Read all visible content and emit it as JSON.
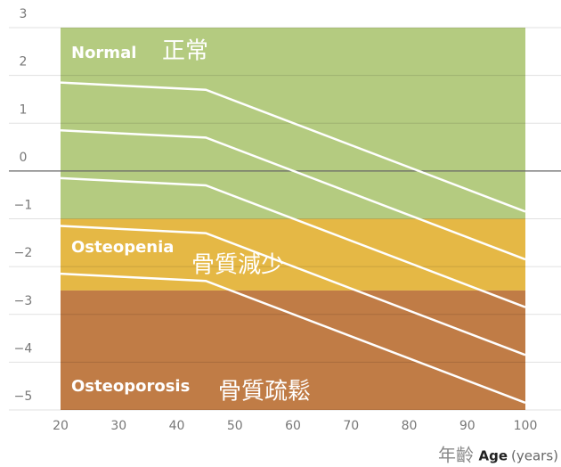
{
  "chart_data": {
    "type": "line",
    "x": [
      20,
      45,
      100
    ],
    "series": [
      {
        "color": "#ffffff",
        "values": [
          1.85,
          1.7,
          -0.85
        ]
      },
      {
        "color": "#ffffff",
        "values": [
          0.85,
          0.7,
          -1.85
        ]
      },
      {
        "color": "#ffffff",
        "values": [
          -0.15,
          -0.3,
          -2.85
        ]
      },
      {
        "color": "#ffffff",
        "values": [
          -1.15,
          -1.3,
          -3.85
        ]
      },
      {
        "color": "#ffffff",
        "values": [
          -2.15,
          -2.3,
          -4.85
        ]
      }
    ],
    "bands": [
      {
        "name": "Normal",
        "name_zh": "正常",
        "range": [
          -1,
          3
        ],
        "color": "#b4cb80"
      },
      {
        "name": "Osteopenia",
        "name_zh": "骨質減少",
        "range": [
          -2.5,
          -1
        ],
        "color": "#e5b845"
      },
      {
        "name": "Osteoporosis",
        "name_zh": "骨質疏鬆",
        "range": [
          -5,
          -2.5
        ],
        "color": "#c07c46"
      }
    ],
    "xlim": [
      20,
      100
    ],
    "xticks": [
      20,
      30,
      40,
      50,
      60,
      70,
      80,
      90,
      100
    ],
    "ylim": [
      -5,
      3
    ],
    "yticks": [
      3,
      2,
      1,
      0,
      {
        "value": -1,
        "label": "−1"
      },
      {
        "value": -2,
        "label": "−2"
      },
      {
        "value": -3,
        "label": "−3"
      },
      {
        "value": -4,
        "label": "−4"
      },
      {
        "value": -5,
        "label": "−5"
      }
    ],
    "x_label": {
      "zh": "年齡",
      "en": "Age",
      "unit": "(years)"
    },
    "grid": true
  }
}
